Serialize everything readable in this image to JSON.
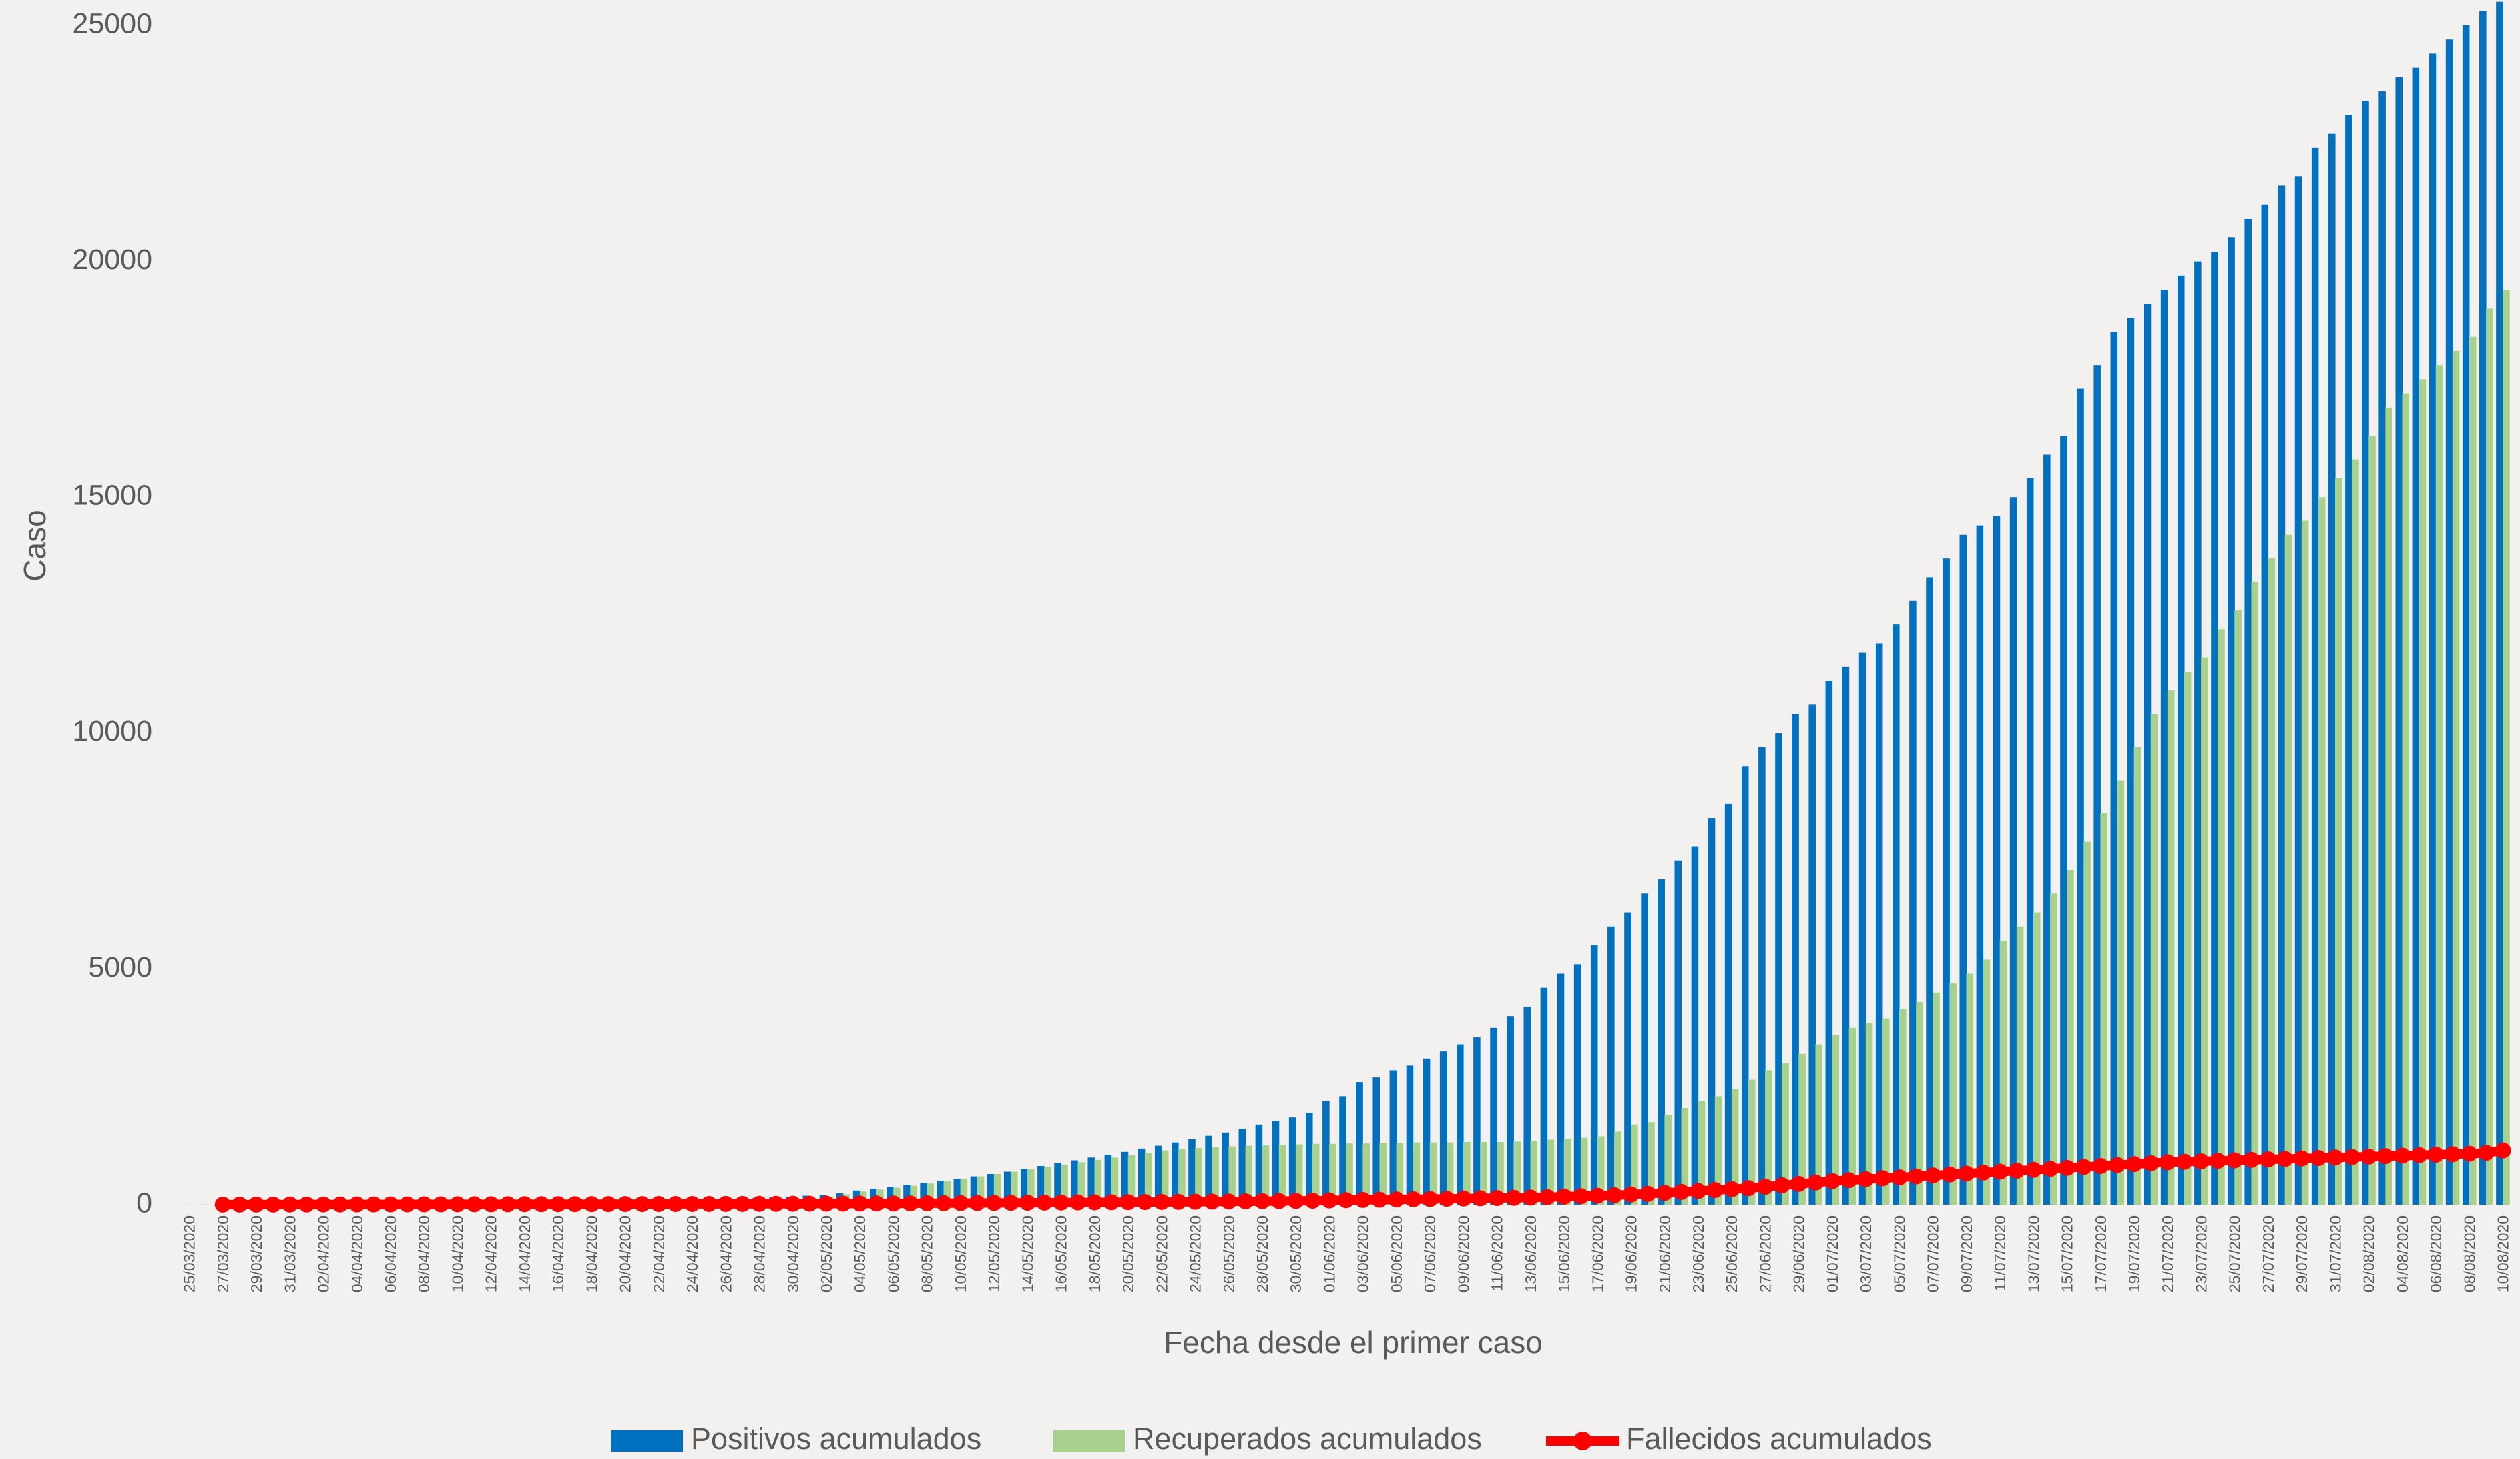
{
  "chart_data": {
    "type": "bar",
    "x_label": "Fecha desde el primer caso",
    "y_label": "Caso",
    "ylim": [
      0,
      25000
    ],
    "yticks": [
      0,
      5000,
      10000,
      15000,
      20000,
      25000
    ],
    "grid": false,
    "legend": "bottom",
    "categories": [
      "25/03/2020",
      null,
      "27/03/2020",
      null,
      "29/03/2020",
      null,
      "31/03/2020",
      null,
      "02/04/2020",
      null,
      "04/04/2020",
      null,
      "06/04/2020",
      null,
      "08/04/2020",
      null,
      "10/04/2020",
      null,
      "12/04/2020",
      null,
      "14/04/2020",
      null,
      "16/04/2020",
      null,
      "18/04/2020",
      null,
      "20/04/2020",
      null,
      "22/04/2020",
      null,
      "24/04/2020",
      null,
      "26/04/2020",
      null,
      "28/04/2020",
      null,
      "30/04/2020",
      null,
      "02/05/2020",
      null,
      "04/05/2020",
      null,
      "06/05/2020",
      null,
      "08/05/2020",
      null,
      "10/05/2020",
      null,
      "12/05/2020",
      null,
      "14/05/2020",
      null,
      "16/05/2020",
      null,
      "18/05/2020",
      null,
      "20/05/2020",
      null,
      "22/05/2020",
      null,
      "24/05/2020",
      null,
      "26/05/2020",
      null,
      "28/05/2020",
      null,
      "30/05/2020",
      null,
      "01/06/2020",
      null,
      "03/06/2020",
      null,
      "05/06/2020",
      null,
      "07/06/2020",
      null,
      "09/06/2020",
      null,
      "11/06/2020",
      null,
      "13/06/2020",
      null,
      "15/06/2020",
      null,
      "17/06/2020",
      null,
      "19/06/2020",
      null,
      "21/06/2020",
      null,
      "23/06/2020",
      null,
      "25/06/2020",
      null,
      "27/06/2020",
      null,
      "29/06/2020",
      null,
      "01/07/2020",
      null,
      "03/07/2020",
      null,
      "05/07/2020",
      null,
      "07/07/2020",
      null,
      "09/07/2020",
      null,
      "11/07/2020",
      null,
      "13/07/2020",
      null,
      "15/07/2020",
      null,
      "17/07/2020",
      null,
      "19/07/2020",
      null,
      "21/07/2020",
      null,
      "23/07/2020",
      null,
      "25/07/2020",
      null,
      "27/07/2020",
      null,
      "29/07/2020",
      null,
      "31/07/2020",
      null,
      "02/08/2020",
      null,
      "04/08/2020",
      null,
      "06/08/2020",
      null,
      "08/08/2020",
      null,
      "10/08/2020"
    ],
    "series": [
      {
        "name": "Positivos acumulados",
        "type": "bar",
        "color": "#0070c0",
        "values": [
          1,
          2,
          3,
          4,
          5,
          6,
          7,
          8,
          9,
          10,
          12,
          14,
          16,
          18,
          20,
          23,
          26,
          30,
          34,
          38,
          42,
          46,
          50,
          55,
          60,
          65,
          70,
          76,
          82,
          88,
          95,
          105,
          115,
          125,
          140,
          155,
          170,
          190,
          210,
          240,
          300,
          340,
          380,
          420,
          460,
          510,
          550,
          600,
          650,
          700,
          760,
          820,
          880,
          940,
          1000,
          1060,
          1120,
          1190,
          1250,
          1320,
          1390,
          1460,
          1530,
          1610,
          1700,
          1780,
          1850,
          1950,
          2200,
          2300,
          2600,
          2700,
          2850,
          2950,
          3100,
          3250,
          3400,
          3550,
          3750,
          4000,
          4200,
          4600,
          4900,
          5100,
          5500,
          5900,
          6200,
          6600,
          6900,
          7300,
          7600,
          8200,
          8500,
          9300,
          9700,
          10000,
          10400,
          10600,
          11100,
          11400,
          11700,
          11900,
          12300,
          12800,
          13300,
          13700,
          14200,
          14400,
          14600,
          15000,
          15400,
          15900,
          16300,
          17300,
          17800,
          18500,
          18800,
          19100,
          19400,
          19700,
          20000,
          20200,
          20500,
          20900,
          21200,
          21600,
          21800,
          22400,
          22700,
          23100,
          23400,
          23600,
          23900,
          24100,
          24400,
          24700,
          25000,
          25300,
          25500
        ]
      },
      {
        "name": "Recuperados acumulados",
        "type": "bar",
        "color": "#a9d18e",
        "values": [
          0,
          0,
          0,
          0,
          0,
          0,
          0,
          0,
          0,
          0,
          0,
          0,
          0,
          0,
          0,
          0,
          0,
          0,
          0,
          0,
          0,
          0,
          0,
          0,
          0,
          0,
          0,
          0,
          0,
          0,
          5,
          10,
          20,
          30,
          50,
          70,
          100,
          130,
          170,
          220,
          280,
          320,
          360,
          400,
          450,
          500,
          540,
          600,
          650,
          700,
          750,
          800,
          850,
          900,
          950,
          1000,
          1050,
          1100,
          1150,
          1180,
          1200,
          1220,
          1240,
          1250,
          1260,
          1270,
          1280,
          1290,
          1290,
          1300,
          1300,
          1310,
          1310,
          1320,
          1320,
          1320,
          1330,
          1330,
          1330,
          1340,
          1350,
          1380,
          1400,
          1420,
          1450,
          1550,
          1700,
          1750,
          1900,
          2050,
          2200,
          2300,
          2450,
          2650,
          2850,
          3000,
          3200,
          3400,
          3600,
          3750,
          3850,
          3950,
          4150,
          4300,
          4500,
          4700,
          4900,
          5200,
          5600,
          5900,
          6200,
          6600,
          7100,
          7700,
          8300,
          9000,
          9700,
          10400,
          10900,
          11300,
          11600,
          12200,
          12600,
          13200,
          13700,
          14200,
          14500,
          15000,
          15400,
          15800,
          16300,
          16900,
          17200,
          17500,
          17800,
          18100,
          18400,
          19000,
          19400
        ]
      },
      {
        "name": "Fallecidos acumulados",
        "type": "line",
        "color": "#ff0000",
        "values": [
          null,
          null,
          1,
          1,
          2,
          2,
          3,
          3,
          4,
          4,
          5,
          5,
          6,
          6,
          7,
          7,
          8,
          8,
          9,
          9,
          10,
          10,
          11,
          11,
          12,
          12,
          13,
          13,
          14,
          14,
          15,
          15,
          16,
          16,
          17,
          18,
          19,
          20,
          21,
          22,
          23,
          24,
          25,
          27,
          29,
          31,
          33,
          35,
          37,
          39,
          41,
          43,
          45,
          47,
          49,
          51,
          53,
          55,
          57,
          59,
          62,
          65,
          68,
          71,
          74,
          77,
          80,
          85,
          90,
          95,
          100,
          105,
          110,
          115,
          120,
          125,
          130,
          135,
          140,
          145,
          150,
          160,
          170,
          180,
          190,
          200,
          215,
          230,
          250,
          270,
          290,
          310,
          330,
          350,
          380,
          410,
          440,
          470,
          500,
          520,
          540,
          560,
          580,
          600,
          620,
          640,
          660,
          680,
          700,
          720,
          740,
          760,
          780,
          800,
          820,
          840,
          860,
          880,
          900,
          910,
          920,
          930,
          940,
          950,
          960,
          970,
          980,
          990,
          1000,
          1010,
          1020,
          1030,
          1040,
          1050,
          1060,
          1070,
          1080,
          1100,
          1150
        ]
      }
    ]
  }
}
